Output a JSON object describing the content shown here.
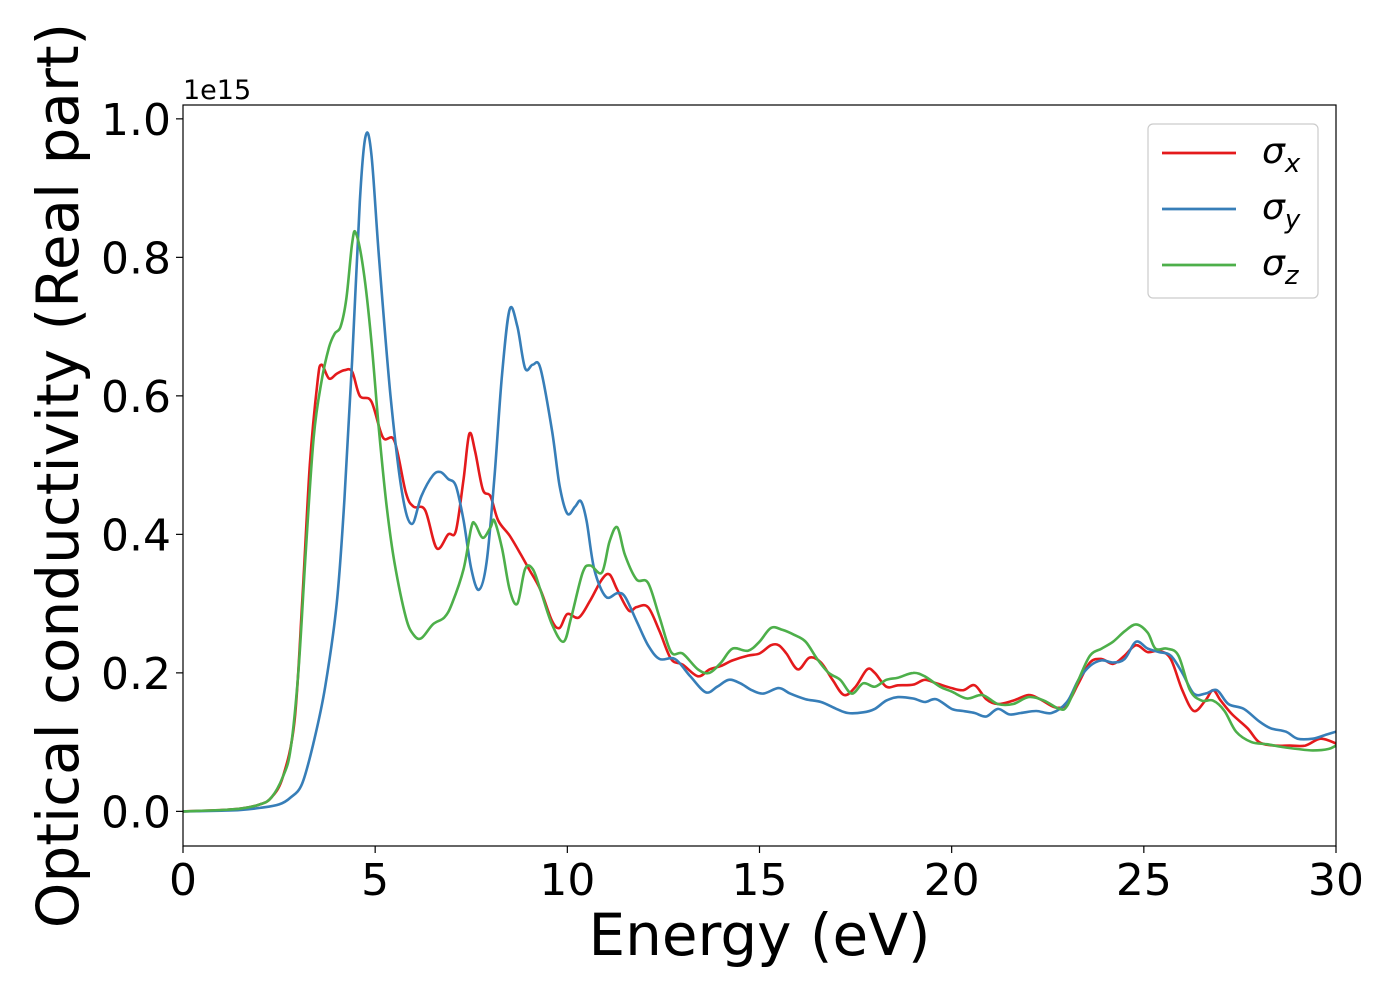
{
  "chart_data": {
    "type": "line",
    "title": "",
    "xlabel": "Energy (eV)",
    "ylabel": "Optical conductivity (Real part)",
    "y_offset_label": "1e15",
    "xlim": [
      0,
      30
    ],
    "ylim": [
      -0.05,
      1.02
    ],
    "x_ticks": [
      0,
      5,
      10,
      15,
      20,
      25,
      30
    ],
    "x_tick_labels": [
      "0",
      "5",
      "10",
      "15",
      "20",
      "25",
      "30"
    ],
    "y_ticks": [
      0.0,
      0.2,
      0.4,
      0.6,
      0.8,
      1.0
    ],
    "y_tick_labels": [
      "0.0",
      "0.2",
      "0.4",
      "0.6",
      "0.8",
      "1.0"
    ],
    "grid": false,
    "legend_position": "top-right",
    "series": [
      {
        "name": "σx",
        "legend_symbol": "σ",
        "legend_subscript": "x",
        "color": "#e41a1c",
        "points": [
          [
            0,
            0
          ],
          [
            1,
            0.002
          ],
          [
            1.5,
            0.004
          ],
          [
            2,
            0.01
          ],
          [
            2.3,
            0.02
          ],
          [
            2.6,
            0.05
          ],
          [
            2.9,
            0.13
          ],
          [
            3.1,
            0.3
          ],
          [
            3.3,
            0.5
          ],
          [
            3.5,
            0.62
          ],
          [
            3.6,
            0.645
          ],
          [
            3.8,
            0.625
          ],
          [
            4.0,
            0.632
          ],
          [
            4.2,
            0.637
          ],
          [
            4.4,
            0.635
          ],
          [
            4.6,
            0.6
          ],
          [
            4.9,
            0.592
          ],
          [
            5.2,
            0.54
          ],
          [
            5.5,
            0.535
          ],
          [
            5.8,
            0.46
          ],
          [
            6.0,
            0.44
          ],
          [
            6.3,
            0.435
          ],
          [
            6.6,
            0.38
          ],
          [
            6.9,
            0.4
          ],
          [
            7.1,
            0.405
          ],
          [
            7.3,
            0.48
          ],
          [
            7.45,
            0.545
          ],
          [
            7.6,
            0.52
          ],
          [
            7.8,
            0.465
          ],
          [
            8.0,
            0.455
          ],
          [
            8.2,
            0.42
          ],
          [
            8.5,
            0.398
          ],
          [
            8.8,
            0.37
          ],
          [
            9.0,
            0.35
          ],
          [
            9.3,
            0.32
          ],
          [
            9.6,
            0.275
          ],
          [
            9.8,
            0.265
          ],
          [
            10.0,
            0.285
          ],
          [
            10.3,
            0.28
          ],
          [
            10.6,
            0.305
          ],
          [
            10.9,
            0.335
          ],
          [
            11.1,
            0.342
          ],
          [
            11.3,
            0.32
          ],
          [
            11.6,
            0.29
          ],
          [
            11.8,
            0.295
          ],
          [
            12.1,
            0.295
          ],
          [
            12.4,
            0.26
          ],
          [
            12.7,
            0.22
          ],
          [
            13.0,
            0.212
          ],
          [
            13.4,
            0.195
          ],
          [
            13.7,
            0.205
          ],
          [
            14.0,
            0.21
          ],
          [
            14.3,
            0.218
          ],
          [
            14.7,
            0.225
          ],
          [
            15.0,
            0.228
          ],
          [
            15.3,
            0.24
          ],
          [
            15.5,
            0.24
          ],
          [
            15.7,
            0.228
          ],
          [
            16.0,
            0.205
          ],
          [
            16.3,
            0.222
          ],
          [
            16.6,
            0.215
          ],
          [
            16.9,
            0.19
          ],
          [
            17.2,
            0.168
          ],
          [
            17.5,
            0.18
          ],
          [
            17.8,
            0.205
          ],
          [
            18.0,
            0.2
          ],
          [
            18.3,
            0.18
          ],
          [
            18.6,
            0.182
          ],
          [
            19.0,
            0.183
          ],
          [
            19.3,
            0.19
          ],
          [
            19.6,
            0.185
          ],
          [
            20.0,
            0.178
          ],
          [
            20.3,
            0.175
          ],
          [
            20.6,
            0.182
          ],
          [
            20.9,
            0.162
          ],
          [
            21.2,
            0.155
          ],
          [
            21.6,
            0.16
          ],
          [
            22.0,
            0.168
          ],
          [
            22.3,
            0.162
          ],
          [
            22.7,
            0.15
          ],
          [
            23.0,
            0.155
          ],
          [
            23.3,
            0.185
          ],
          [
            23.6,
            0.215
          ],
          [
            23.9,
            0.22
          ],
          [
            24.2,
            0.213
          ],
          [
            24.5,
            0.225
          ],
          [
            24.8,
            0.24
          ],
          [
            25.1,
            0.23
          ],
          [
            25.4,
            0.232
          ],
          [
            25.7,
            0.22
          ],
          [
            26.0,
            0.175
          ],
          [
            26.3,
            0.145
          ],
          [
            26.6,
            0.16
          ],
          [
            26.8,
            0.175
          ],
          [
            27.0,
            0.16
          ],
          [
            27.3,
            0.14
          ],
          [
            27.7,
            0.12
          ],
          [
            28.0,
            0.1
          ],
          [
            28.4,
            0.095
          ],
          [
            28.8,
            0.095
          ],
          [
            29.2,
            0.095
          ],
          [
            29.6,
            0.105
          ],
          [
            30.0,
            0.098
          ]
        ]
      },
      {
        "name": "σy",
        "legend_symbol": "σ",
        "legend_subscript": "y",
        "color": "#377eb8",
        "points": [
          [
            0,
            0
          ],
          [
            1,
            0.001
          ],
          [
            1.5,
            0.002
          ],
          [
            2,
            0.005
          ],
          [
            2.5,
            0.01
          ],
          [
            2.8,
            0.02
          ],
          [
            3.1,
            0.04
          ],
          [
            3.4,
            0.1
          ],
          [
            3.7,
            0.18
          ],
          [
            4.0,
            0.3
          ],
          [
            4.2,
            0.45
          ],
          [
            4.4,
            0.65
          ],
          [
            4.6,
            0.88
          ],
          [
            4.75,
            0.975
          ],
          [
            4.9,
            0.95
          ],
          [
            5.1,
            0.8
          ],
          [
            5.4,
            0.6
          ],
          [
            5.7,
            0.46
          ],
          [
            5.95,
            0.415
          ],
          [
            6.2,
            0.455
          ],
          [
            6.5,
            0.485
          ],
          [
            6.7,
            0.49
          ],
          [
            6.9,
            0.48
          ],
          [
            7.1,
            0.47
          ],
          [
            7.3,
            0.42
          ],
          [
            7.5,
            0.35
          ],
          [
            7.7,
            0.32
          ],
          [
            7.9,
            0.36
          ],
          [
            8.1,
            0.48
          ],
          [
            8.3,
            0.63
          ],
          [
            8.5,
            0.725
          ],
          [
            8.7,
            0.7
          ],
          [
            8.9,
            0.64
          ],
          [
            9.1,
            0.645
          ],
          [
            9.3,
            0.64
          ],
          [
            9.6,
            0.55
          ],
          [
            9.8,
            0.47
          ],
          [
            10.0,
            0.43
          ],
          [
            10.2,
            0.44
          ],
          [
            10.35,
            0.448
          ],
          [
            10.5,
            0.42
          ],
          [
            10.7,
            0.35
          ],
          [
            11.0,
            0.31
          ],
          [
            11.3,
            0.315
          ],
          [
            11.5,
            0.31
          ],
          [
            11.8,
            0.275
          ],
          [
            12.1,
            0.24
          ],
          [
            12.4,
            0.22
          ],
          [
            12.8,
            0.22
          ],
          [
            13.2,
            0.195
          ],
          [
            13.6,
            0.172
          ],
          [
            13.9,
            0.18
          ],
          [
            14.2,
            0.19
          ],
          [
            14.5,
            0.185
          ],
          [
            14.8,
            0.175
          ],
          [
            15.1,
            0.17
          ],
          [
            15.5,
            0.178
          ],
          [
            15.8,
            0.17
          ],
          [
            16.2,
            0.162
          ],
          [
            16.6,
            0.158
          ],
          [
            17.0,
            0.148
          ],
          [
            17.3,
            0.142
          ],
          [
            17.7,
            0.143
          ],
          [
            18.0,
            0.148
          ],
          [
            18.3,
            0.16
          ],
          [
            18.6,
            0.165
          ],
          [
            19.0,
            0.163
          ],
          [
            19.3,
            0.158
          ],
          [
            19.6,
            0.162
          ],
          [
            20.0,
            0.148
          ],
          [
            20.3,
            0.145
          ],
          [
            20.6,
            0.142
          ],
          [
            20.9,
            0.137
          ],
          [
            21.2,
            0.148
          ],
          [
            21.5,
            0.14
          ],
          [
            21.8,
            0.142
          ],
          [
            22.2,
            0.145
          ],
          [
            22.6,
            0.142
          ],
          [
            23.0,
            0.158
          ],
          [
            23.3,
            0.19
          ],
          [
            23.6,
            0.21
          ],
          [
            23.9,
            0.218
          ],
          [
            24.2,
            0.215
          ],
          [
            24.5,
            0.22
          ],
          [
            24.8,
            0.245
          ],
          [
            25.1,
            0.235
          ],
          [
            25.4,
            0.23
          ],
          [
            25.7,
            0.225
          ],
          [
            26.0,
            0.2
          ],
          [
            26.3,
            0.17
          ],
          [
            26.6,
            0.17
          ],
          [
            26.9,
            0.175
          ],
          [
            27.2,
            0.155
          ],
          [
            27.6,
            0.148
          ],
          [
            28.0,
            0.13
          ],
          [
            28.3,
            0.12
          ],
          [
            28.7,
            0.115
          ],
          [
            29.0,
            0.105
          ],
          [
            29.4,
            0.105
          ],
          [
            29.7,
            0.11
          ],
          [
            30.0,
            0.115
          ]
        ]
      },
      {
        "name": "σz",
        "legend_symbol": "σ",
        "legend_subscript": "z",
        "color": "#4daf4a",
        "points": [
          [
            0,
            0
          ],
          [
            1,
            0.002
          ],
          [
            1.5,
            0.004
          ],
          [
            2,
            0.01
          ],
          [
            2.3,
            0.02
          ],
          [
            2.6,
            0.05
          ],
          [
            2.8,
            0.09
          ],
          [
            3.0,
            0.2
          ],
          [
            3.2,
            0.38
          ],
          [
            3.4,
            0.54
          ],
          [
            3.6,
            0.62
          ],
          [
            3.8,
            0.67
          ],
          [
            3.95,
            0.69
          ],
          [
            4.1,
            0.7
          ],
          [
            4.25,
            0.74
          ],
          [
            4.4,
            0.82
          ],
          [
            4.5,
            0.835
          ],
          [
            4.7,
            0.78
          ],
          [
            4.9,
            0.68
          ],
          [
            5.1,
            0.55
          ],
          [
            5.3,
            0.44
          ],
          [
            5.5,
            0.36
          ],
          [
            5.8,
            0.28
          ],
          [
            6.0,
            0.255
          ],
          [
            6.2,
            0.25
          ],
          [
            6.5,
            0.27
          ],
          [
            6.8,
            0.28
          ],
          [
            7.0,
            0.3
          ],
          [
            7.3,
            0.35
          ],
          [
            7.5,
            0.41
          ],
          [
            7.6,
            0.415
          ],
          [
            7.8,
            0.395
          ],
          [
            8.0,
            0.41
          ],
          [
            8.1,
            0.42
          ],
          [
            8.3,
            0.38
          ],
          [
            8.5,
            0.32
          ],
          [
            8.7,
            0.3
          ],
          [
            8.9,
            0.35
          ],
          [
            9.1,
            0.35
          ],
          [
            9.3,
            0.32
          ],
          [
            9.6,
            0.27
          ],
          [
            9.9,
            0.245
          ],
          [
            10.1,
            0.28
          ],
          [
            10.4,
            0.345
          ],
          [
            10.6,
            0.355
          ],
          [
            10.9,
            0.345
          ],
          [
            11.1,
            0.39
          ],
          [
            11.3,
            0.41
          ],
          [
            11.5,
            0.37
          ],
          [
            11.8,
            0.335
          ],
          [
            12.1,
            0.33
          ],
          [
            12.4,
            0.28
          ],
          [
            12.7,
            0.23
          ],
          [
            13.0,
            0.228
          ],
          [
            13.4,
            0.205
          ],
          [
            13.7,
            0.2
          ],
          [
            14.0,
            0.215
          ],
          [
            14.3,
            0.235
          ],
          [
            14.7,
            0.232
          ],
          [
            15.0,
            0.245
          ],
          [
            15.3,
            0.265
          ],
          [
            15.6,
            0.262
          ],
          [
            15.9,
            0.255
          ],
          [
            16.2,
            0.245
          ],
          [
            16.5,
            0.22
          ],
          [
            16.8,
            0.2
          ],
          [
            17.1,
            0.19
          ],
          [
            17.4,
            0.17
          ],
          [
            17.7,
            0.185
          ],
          [
            18.0,
            0.18
          ],
          [
            18.3,
            0.19
          ],
          [
            18.6,
            0.193
          ],
          [
            19.0,
            0.2
          ],
          [
            19.3,
            0.195
          ],
          [
            19.7,
            0.18
          ],
          [
            20.0,
            0.173
          ],
          [
            20.4,
            0.163
          ],
          [
            20.8,
            0.168
          ],
          [
            21.2,
            0.155
          ],
          [
            21.6,
            0.155
          ],
          [
            22.0,
            0.165
          ],
          [
            22.4,
            0.16
          ],
          [
            22.8,
            0.148
          ],
          [
            23.0,
            0.152
          ],
          [
            23.3,
            0.19
          ],
          [
            23.6,
            0.225
          ],
          [
            23.9,
            0.235
          ],
          [
            24.2,
            0.245
          ],
          [
            24.5,
            0.26
          ],
          [
            24.8,
            0.27
          ],
          [
            25.1,
            0.258
          ],
          [
            25.3,
            0.235
          ],
          [
            25.6,
            0.235
          ],
          [
            25.9,
            0.225
          ],
          [
            26.2,
            0.175
          ],
          [
            26.5,
            0.16
          ],
          [
            26.8,
            0.16
          ],
          [
            27.1,
            0.145
          ],
          [
            27.4,
            0.115
          ],
          [
            27.8,
            0.1
          ],
          [
            28.2,
            0.097
          ],
          [
            28.6,
            0.093
          ],
          [
            29.0,
            0.09
          ],
          [
            29.4,
            0.088
          ],
          [
            29.8,
            0.09
          ],
          [
            30.0,
            0.095
          ]
        ]
      }
    ]
  }
}
